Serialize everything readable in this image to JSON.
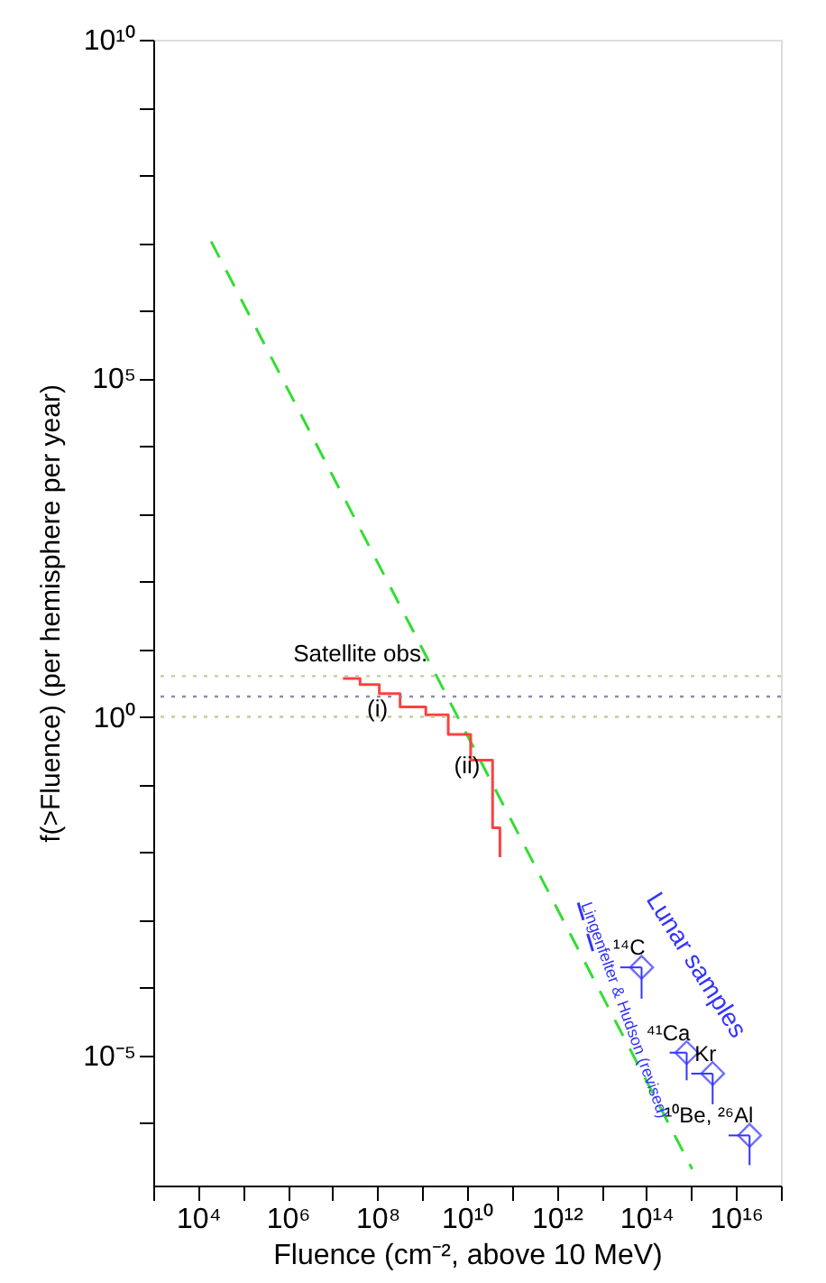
{
  "chart_data": {
    "type": "line",
    "xlabel": "Fluence (cm⁻², above 10 MeV)",
    "ylabel": "f(>Fluence) (per hemisphere per year)",
    "log": "xy",
    "grid": false,
    "xlim": [
      1000.0,
      1e+17
    ],
    "ylim": [
      1.2e-07,
      10000000000.0
    ],
    "xticks": [
      {
        "value": 1000.0,
        "label": null
      },
      {
        "value": 10000.0,
        "label": "10⁴"
      },
      {
        "value": 100000.0,
        "label": null
      },
      {
        "value": 1000000.0,
        "label": "10⁶"
      },
      {
        "value": 10000000.0,
        "label": null
      },
      {
        "value": 100000000.0,
        "label": "10⁸"
      },
      {
        "value": 1000000000.0,
        "label": null
      },
      {
        "value": 10000000000.0,
        "label": "10¹⁰"
      },
      {
        "value": 100000000000.0,
        "label": null
      },
      {
        "value": 1000000000000.0,
        "label": "10¹²"
      },
      {
        "value": 10000000000000.0,
        "label": null
      },
      {
        "value": 100000000000000.0,
        "label": "10¹⁴"
      },
      {
        "value": 1000000000000000.0,
        "label": null
      },
      {
        "value": 1e+16,
        "label": "10¹⁶"
      },
      {
        "value": 1e+17,
        "label": null
      }
    ],
    "yticks": [
      {
        "value": 1e-06,
        "label": null
      },
      {
        "value": 1e-05,
        "label": "10⁻⁵"
      },
      {
        "value": 0.0001,
        "label": null
      },
      {
        "value": 0.001,
        "label": null
      },
      {
        "value": 0.01,
        "label": null
      },
      {
        "value": 0.1,
        "label": null
      },
      {
        "value": 1,
        "label": "10⁰"
      },
      {
        "value": 10,
        "label": null
      },
      {
        "value": 100,
        "label": null
      },
      {
        "value": 1000.0,
        "label": null
      },
      {
        "value": 10000.0,
        "label": null
      },
      {
        "value": 100000.0,
        "label": "10⁵"
      },
      {
        "value": 1000000.0,
        "label": null
      },
      {
        "value": 10000000.0,
        "label": null
      },
      {
        "value": 100000000.0,
        "label": null
      },
      {
        "value": 1000000000.0,
        "label": null
      },
      {
        "value": 10000000000.0,
        "label": "10¹⁰"
      }
    ],
    "series": [
      {
        "color": "#33dd33",
        "line_style": "dashed",
        "x": [
          19500.0,
          1050000000000000.0
        ],
        "values": [
          10500000.0,
          2.1e-07
        ]
      },
      {
        "type": "step",
        "color": "#ff4040",
        "x": [
          17000000.0,
          41000000.0,
          110000000.0,
          320000000.0,
          1200000000.0,
          3800000000.0,
          12000000000.0,
          37000000000.0,
          54000000000.0
        ],
        "values": [
          3.7,
          3.0,
          2.2,
          1.4,
          1.07,
          0.55,
          0.23,
          0.023,
          0.0085
        ]
      },
      {
        "name": "Lingenfelter & Hudson (revised)",
        "color": "#3333ff",
        "line_style": "dashed",
        "x": [
          3000000000000.0,
          7600000000000.0
        ],
        "values": [
          0.0018,
          0.00024
        ]
      },
      {
        "type": "scatter",
        "name": "Lunar samples",
        "color": "#3333ff",
        "marker": "diamond",
        "x": [
          78000000000000.0,
          790000000000000.0,
          3000000000000000.0,
          2e+16
        ],
        "values": [
          0.0002,
          1.1e-05,
          5.4e-06,
          6.6e-07
        ],
        "value_labels": [
          "¹⁴C",
          "⁴¹Ca",
          "Kr",
          "¹⁰Be, ²⁶Al"
        ],
        "errors": [
          [
            6.9e-05,
            0.0002
          ],
          [
            4.3e-06,
            1.1e-05
          ],
          [
            1.9e-06,
            5.4e-06
          ],
          [
            2.4e-07,
            6.6e-07
          ]
        ],
        "xerrors": [
          [
            26000000000000.0,
            78000000000000.0
          ],
          [
            330000000000000.0,
            790000000000000.0
          ],
          [
            1000000000000000.0,
            3000000000000000.0
          ],
          [
            6800000000000000.0,
            2e+16
          ]
        ]
      }
    ],
    "ref_lines": [
      {
        "axis": "y",
        "value": 4,
        "color": "#c8c89a",
        "line_style": "dotted",
        "label": "Satellite obs."
      },
      {
        "axis": "y",
        "value": 2,
        "color": "#8c8ca8",
        "line_style": "dotted"
      },
      {
        "axis": "y",
        "value": 1,
        "color": "#c8c89a",
        "line_style": "dotted"
      }
    ],
    "annotations": [
      {
        "text": "(i)",
        "x": 100000000.0,
        "y": 1.3
      },
      {
        "text": "(ii)",
        "x": 10000000000.0,
        "y": 0.19
      }
    ]
  }
}
